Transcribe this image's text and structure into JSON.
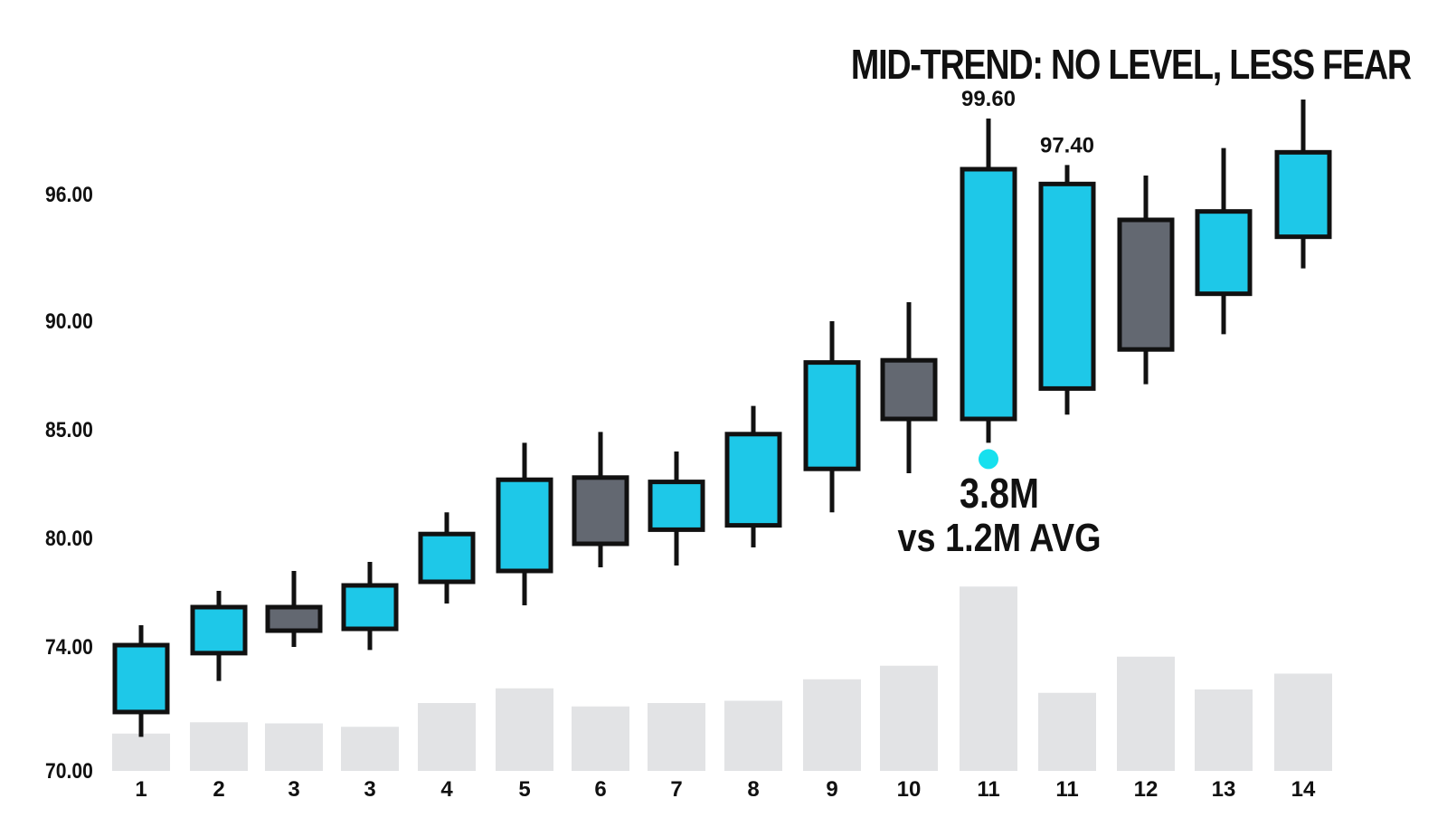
{
  "chart_data": {
    "type": "candlestick",
    "title": "MID-TREND: NO LEVEL, LESS FEAR",
    "x_tick_labels": [
      "1",
      "2",
      "3",
      "3",
      "4",
      "5",
      "6",
      "7",
      "8",
      "9",
      "10",
      "11",
      "11",
      "12",
      "13",
      "14"
    ],
    "y_tick_labels": [
      "70.00",
      "74.00",
      "80.00",
      "85.00",
      "90.00",
      "96.00"
    ],
    "candles": [
      {
        "open": 71.9,
        "high": 75.2,
        "low": 71.1,
        "close": 74.1,
        "direction": "up"
      },
      {
        "open": 73.8,
        "high": 77.1,
        "low": 72.9,
        "close": 76.2,
        "direction": "up"
      },
      {
        "open": 76.2,
        "high": 78.2,
        "low": 74.0,
        "close": 74.9,
        "direction": "down"
      },
      {
        "open": 75.0,
        "high": 78.7,
        "low": 73.9,
        "close": 77.4,
        "direction": "up"
      },
      {
        "open": 77.6,
        "high": 81.2,
        "low": 76.4,
        "close": 80.2,
        "direction": "up"
      },
      {
        "open": 78.2,
        "high": 84.4,
        "low": 76.3,
        "close": 82.7,
        "direction": "up"
      },
      {
        "open": 82.8,
        "high": 84.9,
        "low": 78.4,
        "close": 79.7,
        "direction": "down"
      },
      {
        "open": 80.4,
        "high": 84.0,
        "low": 78.5,
        "close": 82.6,
        "direction": "up"
      },
      {
        "open": 80.6,
        "high": 86.1,
        "low": 79.5,
        "close": 84.8,
        "direction": "up"
      },
      {
        "open": 83.2,
        "high": 90.0,
        "low": 81.2,
        "close": 88.1,
        "direction": "up"
      },
      {
        "open": 88.2,
        "high": 90.9,
        "low": 83.0,
        "close": 85.5,
        "direction": "down"
      },
      {
        "open": 85.5,
        "high": 99.6,
        "low": 84.4,
        "close": 97.2,
        "direction": "up",
        "label": "99.60"
      },
      {
        "open": 86.9,
        "high": 97.4,
        "low": 85.7,
        "close": 96.5,
        "direction": "up",
        "label": "97.40"
      },
      {
        "open": 94.8,
        "high": 96.9,
        "low": 87.1,
        "close": 88.7,
        "direction": "down"
      },
      {
        "open": 91.3,
        "high": 98.2,
        "low": 89.4,
        "close": 95.2,
        "direction": "up"
      },
      {
        "open": 94.0,
        "high": 100.5,
        "low": 92.5,
        "close": 98.0,
        "direction": "up"
      }
    ],
    "volume": {
      "scale": "relative",
      "values": [
        0.33,
        0.43,
        0.42,
        0.39,
        0.6,
        0.73,
        0.57,
        0.6,
        0.62,
        0.81,
        0.93,
        1.63,
        0.69,
        1.01,
        0.72,
        0.86
      ]
    },
    "annotation": {
      "candle_index": 11,
      "line1": "3.8M",
      "line2": "vs 1.2M AVG"
    },
    "y_scale": "piecewise",
    "grid": false,
    "legend": "none",
    "colors": {
      "up": "#1ec8e8",
      "down": "#636871",
      "outline": "#111111",
      "volume": "#e2e3e5",
      "marker": "#16e0ee"
    }
  }
}
